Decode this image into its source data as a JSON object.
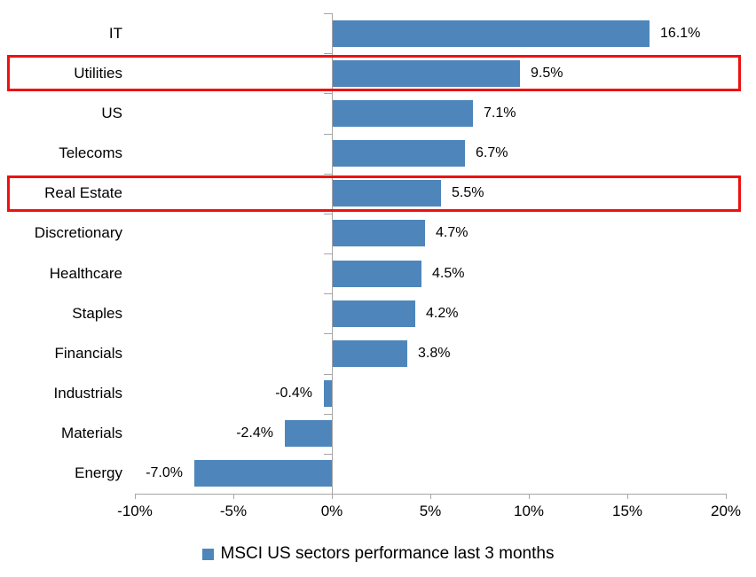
{
  "chart_data": {
    "type": "bar",
    "orientation": "horizontal",
    "title": "",
    "xlabel": "",
    "ylabel": "",
    "categories": [
      "IT",
      "Utilities",
      "US",
      "Telecoms",
      "Real Estate",
      "Discretionary",
      "Healthcare",
      "Staples",
      "Financials",
      "Industrials",
      "Materials",
      "Energy"
    ],
    "values": [
      16.1,
      9.5,
      7.1,
      6.7,
      5.5,
      4.7,
      4.5,
      4.2,
      3.8,
      -0.4,
      -2.4,
      -7.0
    ],
    "value_labels": [
      "16.1%",
      "9.5%",
      "7.1%",
      "6.7%",
      "5.5%",
      "4.7%",
      "4.5%",
      "4.2%",
      "3.8%",
      "-0.4%",
      "-2.4%",
      "-7.0%"
    ],
    "x_tick_labels": [
      "-10%",
      "-5%",
      "0%",
      "5%",
      "10%",
      "15%",
      "20%"
    ],
    "x_tick_values": [
      -10,
      -5,
      0,
      5,
      10,
      15,
      20
    ],
    "xlim": [
      -10,
      20
    ],
    "grid": false,
    "legend_position": "bottom",
    "legend": "MSCI US sectors performance last 3 months",
    "bar_color": "#4E86BC",
    "axis_color": "#A6A6A6",
    "text_color": "#000000",
    "highlight_color": "#EE1111",
    "highlighted_categories": [
      "Utilities",
      "Real Estate"
    ]
  }
}
